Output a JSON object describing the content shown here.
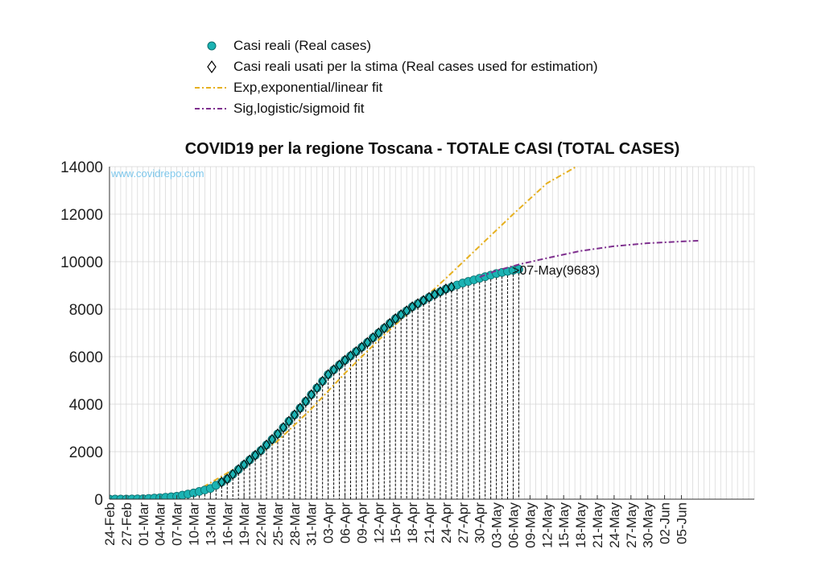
{
  "chart_data": {
    "type": "line",
    "title": "COVID19 per la regione Toscana - TOTALE CASI (TOTAL CASES)",
    "watermark": "www.covidrepo.com",
    "annotation": ">07-May(9683)",
    "xlabel": "",
    "ylabel": "",
    "ylim": [
      0,
      14000
    ],
    "yticks": [
      "0",
      "2000",
      "4000",
      "6000",
      "8000",
      "10000",
      "12000",
      "14000"
    ],
    "x_range": [
      "2020-02-24",
      "2020-06-18"
    ],
    "xtick_labels": [
      "24-Feb",
      "27-Feb",
      "01-Mar",
      "04-Mar",
      "07-Mar",
      "10-Mar",
      "13-Mar",
      "16-Mar",
      "19-Mar",
      "22-Mar",
      "25-Mar",
      "28-Mar",
      "31-Mar",
      "03-Apr",
      "06-Apr",
      "09-Apr",
      "12-Apr",
      "15-Apr",
      "18-Apr",
      "21-Apr",
      "24-Apr",
      "27-Apr",
      "30-Apr",
      "03-May",
      "06-May",
      "09-May",
      "12-May",
      "15-May",
      "18-May",
      "21-May",
      "24-May",
      "27-May",
      "30-May",
      "02-Jun",
      "05-Jun"
    ],
    "grid": true,
    "legend_position": "top",
    "legend": [
      {
        "label": "Casi reali (Real cases)",
        "marker": "circle",
        "color": "#1bb3b3"
      },
      {
        "label": "Casi reali usati per la stima (Real cases used for estimation)",
        "marker": "diamond",
        "color": "#000000"
      },
      {
        "label": "Exp,exponential/linear fit",
        "style": "dash-dot",
        "color": "#e6b020"
      },
      {
        "label": "Sig,logistic/sigmoid fit",
        "style": "dash-dot",
        "color": "#7e2f8e"
      }
    ],
    "series": [
      {
        "name": "Casi reali (Real cases)",
        "x": [
          "2020-02-24",
          "2020-02-27",
          "2020-03-01",
          "2020-03-04",
          "2020-03-07",
          "2020-03-10",
          "2020-03-13",
          "2020-03-16",
          "2020-03-19",
          "2020-03-22",
          "2020-03-25",
          "2020-03-28",
          "2020-03-31",
          "2020-04-03",
          "2020-04-06",
          "2020-04-09",
          "2020-04-12",
          "2020-04-15",
          "2020-04-18",
          "2020-04-21",
          "2020-04-24",
          "2020-04-27",
          "2020-04-30",
          "2020-05-03",
          "2020-05-07"
        ],
        "y": [
          2,
          2,
          15,
          60,
          120,
          260,
          450,
          850,
          1450,
          2050,
          2750,
          3550,
          4400,
          5250,
          5850,
          6400,
          7000,
          7600,
          8100,
          8500,
          8850,
          9100,
          9300,
          9500,
          9683
        ]
      },
      {
        "name": "Exp,exponential/linear fit",
        "x": [
          "2020-03-08",
          "2020-03-12",
          "2020-03-16",
          "2020-03-20",
          "2020-03-25",
          "2020-03-31",
          "2020-04-06",
          "2020-04-12",
          "2020-04-18",
          "2020-04-24",
          "2020-04-30",
          "2020-05-06",
          "2020-05-12",
          "2020-05-18"
        ],
        "y": [
          0,
          550,
          1100,
          1650,
          2450,
          3800,
          5300,
          6700,
          8000,
          9300,
          10650,
          12000,
          13300,
          14100
        ]
      },
      {
        "name": "Sig,logistic/sigmoid fit",
        "x": [
          "2020-04-30",
          "2020-05-03",
          "2020-05-07",
          "2020-05-12",
          "2020-05-18",
          "2020-05-24",
          "2020-05-30",
          "2020-06-05",
          "2020-06-08"
        ],
        "y": [
          9350,
          9620,
          9880,
          10150,
          10450,
          10650,
          10780,
          10850,
          10880
        ]
      }
    ]
  }
}
